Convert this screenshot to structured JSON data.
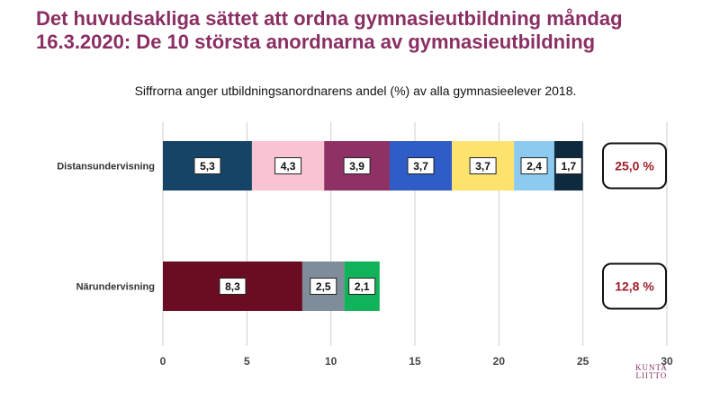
{
  "title": "Det huvudsakliga sättet att ordna gymnasieutbildning måndag 16.3.2020: De 10 största anordnarna av gymnasieutbildning",
  "subtitle": "Siffrorna anger utbildningsanordnarens andel (%) av alla gymnasieelever 2018.",
  "logo": {
    "line1": "KUNTA",
    "line2": "LIITTO"
  },
  "chart_data": {
    "type": "bar",
    "orientation": "horizontal",
    "stacked": true,
    "xlim": [
      0,
      30
    ],
    "xticks": [
      "0",
      "5",
      "10",
      "15",
      "20",
      "25",
      "30"
    ],
    "grid": true,
    "categories": [
      "Distansundervisning",
      "Närundervisning"
    ],
    "rows": [
      {
        "label": "Distansundervisning",
        "total_label": "25,0 %",
        "segments": [
          {
            "value": 5.3,
            "label": "5,3",
            "color": "#164466"
          },
          {
            "value": 4.3,
            "label": "4,3",
            "color": "#f9c3d2"
          },
          {
            "value": 3.9,
            "label": "3,9",
            "color": "#8e3265"
          },
          {
            "value": 3.7,
            "label": "3,7",
            "color": "#2f5cc6"
          },
          {
            "value": 3.7,
            "label": "3,7",
            "color": "#fde26e"
          },
          {
            "value": 2.4,
            "label": "2,4",
            "color": "#8ccaf0"
          },
          {
            "value": 1.7,
            "label": "1,7",
            "color": "#0e2a3e"
          }
        ]
      },
      {
        "label": "Närundervisning",
        "total_label": "12,8 %",
        "segments": [
          {
            "value": 8.3,
            "label": "8,3",
            "color": "#6b0d22"
          },
          {
            "value": 2.5,
            "label": "2,5",
            "color": "#7f8c9a"
          },
          {
            "value": 2.1,
            "label": "2,1",
            "color": "#10b25a"
          }
        ]
      }
    ],
    "colors": {
      "grid": "#cfcfcf",
      "total_text": "#a11d2a",
      "title": "#8a2f63"
    }
  }
}
